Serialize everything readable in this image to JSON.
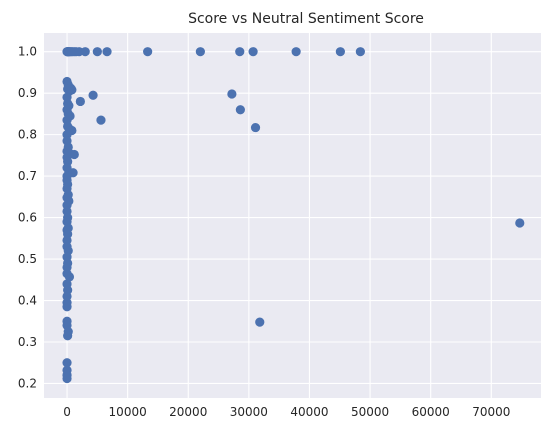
{
  "chart_data": {
    "type": "scatter",
    "title": "Score vs Neutral Sentiment Score",
    "xlabel": "",
    "ylabel": "",
    "xlim": [
      -3800,
      78200
    ],
    "ylim": [
      0.165,
      1.045
    ],
    "xticks": [
      0,
      10000,
      20000,
      30000,
      40000,
      50000,
      60000,
      70000
    ],
    "yticks": [
      0.2,
      0.3,
      0.4,
      0.5,
      0.6,
      0.7,
      0.8,
      0.9,
      1.0
    ],
    "xtick_labels": [
      "0",
      "10000",
      "20000",
      "30000",
      "40000",
      "50000",
      "60000",
      "70000"
    ],
    "ytick_labels": [
      "0.2",
      "0.3",
      "0.4",
      "0.5",
      "0.6",
      "0.7",
      "0.8",
      "0.9",
      "1.0"
    ],
    "grid": true,
    "color": "#4c72b0",
    "background": "#eaeaf2",
    "points": [
      [
        0,
        1.0
      ],
      [
        50,
        1.0
      ],
      [
        100,
        1.0
      ],
      [
        150,
        1.0
      ],
      [
        200,
        1.0
      ],
      [
        300,
        1.0
      ],
      [
        400,
        1.0
      ],
      [
        500,
        1.0
      ],
      [
        700,
        1.0
      ],
      [
        900,
        1.0
      ],
      [
        1200,
        1.0
      ],
      [
        1500,
        1.0
      ],
      [
        2000,
        1.0
      ],
      [
        3000,
        1.0
      ],
      [
        5000,
        1.0
      ],
      [
        6600,
        1.0
      ],
      [
        13300,
        1.0
      ],
      [
        22000,
        1.0
      ],
      [
        28500,
        1.0
      ],
      [
        30700,
        1.0
      ],
      [
        37800,
        1.0
      ],
      [
        45100,
        1.0
      ],
      [
        48400,
        1.0
      ],
      [
        4300,
        0.895
      ],
      [
        27200,
        0.898
      ],
      [
        2200,
        0.88
      ],
      [
        5600,
        0.835
      ],
      [
        28600,
        0.86
      ],
      [
        31100,
        0.817
      ],
      [
        74700,
        0.587
      ],
      [
        31800,
        0.348
      ],
      [
        0,
        0.928
      ],
      [
        200,
        0.92
      ],
      [
        100,
        0.91
      ],
      [
        400,
        0.905
      ],
      [
        600,
        0.912
      ],
      [
        800,
        0.908
      ],
      [
        0,
        0.89
      ],
      [
        100,
        0.875
      ],
      [
        300,
        0.87
      ],
      [
        0,
        0.86
      ],
      [
        200,
        0.85
      ],
      [
        500,
        0.845
      ],
      [
        0,
        0.835
      ],
      [
        100,
        0.82
      ],
      [
        300,
        0.815
      ],
      [
        800,
        0.81
      ],
      [
        0,
        0.8
      ],
      [
        0,
        0.785
      ],
      [
        200,
        0.77
      ],
      [
        0,
        0.76
      ],
      [
        400,
        0.755
      ],
      [
        1200,
        0.752
      ],
      [
        0,
        0.745
      ],
      [
        100,
        0.735
      ],
      [
        0,
        0.72
      ],
      [
        300,
        0.71
      ],
      [
        1000,
        0.708
      ],
      [
        0,
        0.7
      ],
      [
        0,
        0.69
      ],
      [
        100,
        0.68
      ],
      [
        0,
        0.67
      ],
      [
        200,
        0.655
      ],
      [
        0,
        0.648
      ],
      [
        300,
        0.64
      ],
      [
        0,
        0.63
      ],
      [
        0,
        0.615
      ],
      [
        100,
        0.6
      ],
      [
        0,
        0.59
      ],
      [
        200,
        0.575
      ],
      [
        0,
        0.57
      ],
      [
        100,
        0.56
      ],
      [
        0,
        0.545
      ],
      [
        0,
        0.53
      ],
      [
        200,
        0.52
      ],
      [
        0,
        0.505
      ],
      [
        100,
        0.49
      ],
      [
        0,
        0.48
      ],
      [
        0,
        0.465
      ],
      [
        400,
        0.457
      ],
      [
        0,
        0.44
      ],
      [
        100,
        0.425
      ],
      [
        0,
        0.41
      ],
      [
        0,
        0.395
      ],
      [
        0,
        0.385
      ],
      [
        0,
        0.35
      ],
      [
        0,
        0.34
      ],
      [
        200,
        0.325
      ],
      [
        100,
        0.315
      ],
      [
        0,
        0.25
      ],
      [
        0,
        0.232
      ],
      [
        0,
        0.22
      ],
      [
        0,
        0.212
      ]
    ]
  }
}
